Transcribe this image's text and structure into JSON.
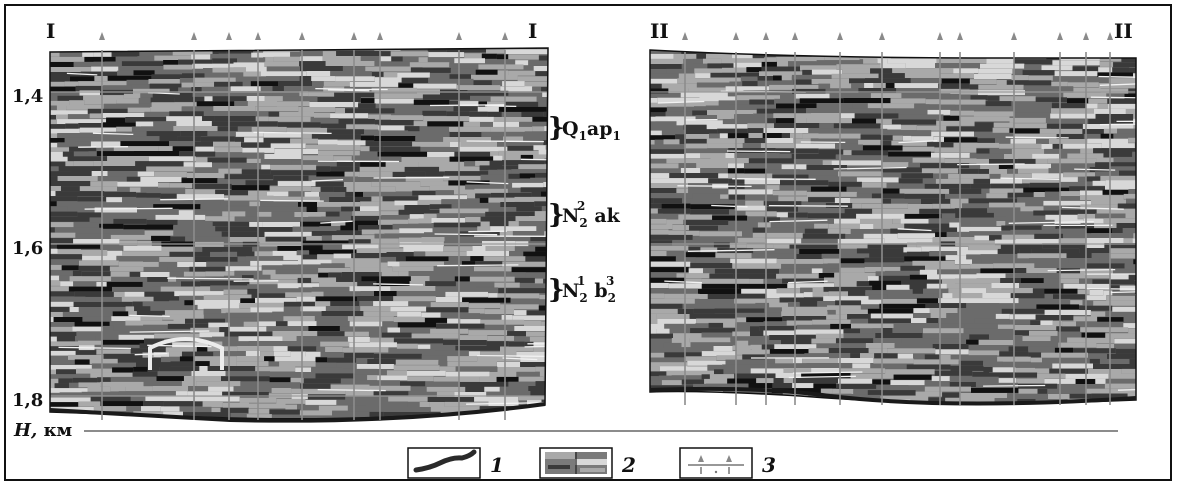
{
  "profiles": [
    {
      "left_label": "I",
      "right_label": "I"
    },
    {
      "left_label": "II",
      "right_label": "II"
    }
  ],
  "depth_axis": {
    "ticks": [
      "1,4",
      "1,6",
      "1,8"
    ],
    "label_var": "H,",
    "label_unit": "км"
  },
  "horizons": [
    {
      "main": "Q",
      "sub": "1",
      "rest": "ap",
      "rest_sub": "1",
      "sup": ""
    },
    {
      "main": "N",
      "sub": "2",
      "sup": "2",
      "rest": " ak",
      "rest_sub": "",
      "rest_sup": ""
    },
    {
      "main": "N",
      "sub": "2",
      "sup": "1",
      "rest": " b",
      "rest_sub": "2",
      "rest_sup": "3"
    }
  ],
  "legend": [
    {
      "num": "1",
      "icon": "boundary-line-icon"
    },
    {
      "num": "2",
      "icon": "seismic-section-icon"
    },
    {
      "num": "3",
      "icon": "well-markers-icon"
    }
  ],
  "colors": {
    "dark": "#3a3a3a",
    "mid": "#6b6b6b",
    "light": "#a9a9a9",
    "pale": "#d8d8d8",
    "black": "#111111"
  }
}
